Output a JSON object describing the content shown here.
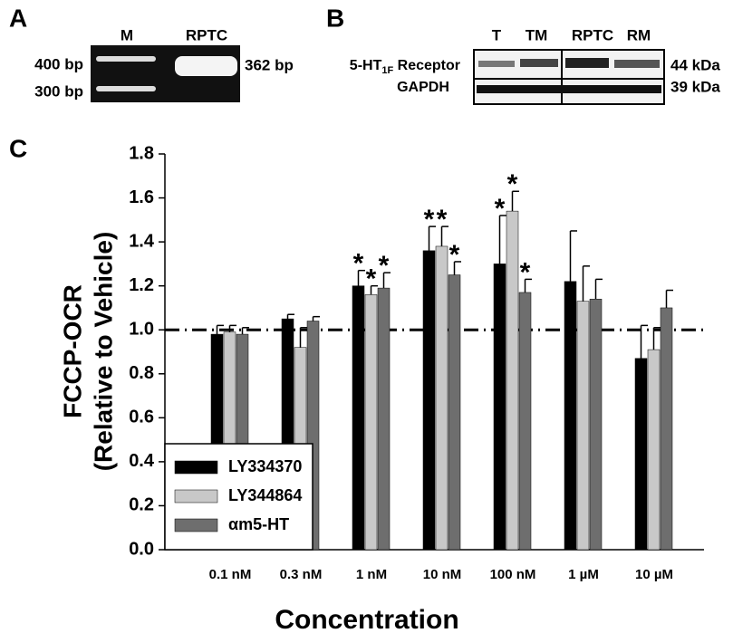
{
  "panel_a": {
    "label": "A",
    "lanes": [
      "M",
      "RPTC"
    ],
    "markers": [
      "400 bp",
      "300 bp"
    ],
    "band": "362 bp"
  },
  "panel_b": {
    "label": "B",
    "lanes": [
      "T",
      "TM",
      "RPTC",
      "RM"
    ],
    "rows": [
      {
        "prefix": "5-HT",
        "subscript": "1F",
        "suffix": " Receptor",
        "size": "44 kDa"
      },
      {
        "prefix": "GAPDH",
        "size": "39 kDa"
      }
    ]
  },
  "chart_data": {
    "type": "bar",
    "panel_label": "C",
    "xlabel": "Concentration",
    "ylabel": [
      "FCCP-OCR",
      "(Relative to Vehicle)"
    ],
    "categories": [
      "0.1 nM",
      "0.3 nM",
      "1 nM",
      "10 nM",
      "100 nM",
      "1 µM",
      "10 µM"
    ],
    "ylim": [
      0,
      1.8
    ],
    "yticks": [
      {
        "value": 0,
        "label": "0.0"
      },
      0.2,
      0.4,
      0.6,
      0.8,
      {
        "value": 1,
        "label": "1.0"
      },
      1.2,
      1.4,
      1.6,
      1.8
    ],
    "reference_line": 1,
    "legend": "lower left",
    "series": [
      {
        "name": "LY334370",
        "color": "#000000",
        "values": [
          0.98,
          1.05,
          1.2,
          1.36,
          1.3,
          1.22,
          0.87
        ],
        "errors": [
          0.04,
          0.02,
          0.07,
          0.11,
          0.22,
          0.23,
          0.15
        ],
        "markers": [
          null,
          null,
          "*",
          "*",
          "*",
          null,
          null
        ]
      },
      {
        "name": "LY344864",
        "color": "#c8c8c8",
        "values": [
          0.99,
          0.92,
          1.16,
          1.38,
          1.54,
          1.13,
          0.91
        ],
        "errors": [
          0.03,
          0.09,
          0.04,
          0.09,
          0.09,
          0.16,
          0.1
        ],
        "markers": [
          null,
          null,
          "*",
          "*",
          "*",
          null,
          null
        ]
      },
      {
        "name": "αm5-HT",
        "color": "#6e6e6e",
        "values": [
          0.98,
          1.04,
          1.19,
          1.25,
          1.17,
          1.14,
          1.1
        ],
        "errors": [
          0.03,
          0.02,
          0.07,
          0.06,
          0.06,
          0.09,
          0.08
        ],
        "markers": [
          null,
          null,
          "*",
          "*",
          "*",
          null,
          null
        ]
      }
    ]
  }
}
